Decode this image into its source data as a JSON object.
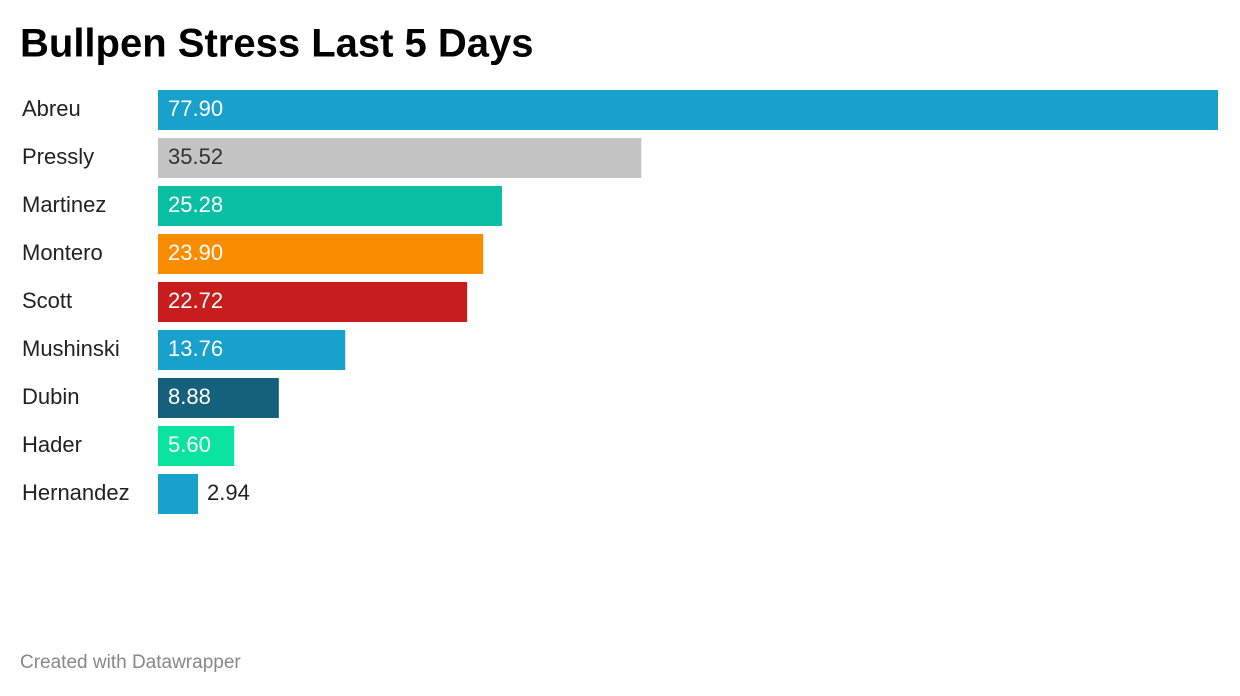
{
  "chart_data": {
    "type": "bar",
    "orientation": "horizontal",
    "title": "Bullpen Stress Last 5 Days",
    "categories": [
      "Abreu",
      "Pressly",
      "Martinez",
      "Montero",
      "Scott",
      "Mushinski",
      "Dubin",
      "Hader",
      "Hernandez"
    ],
    "values": [
      77.9,
      35.52,
      25.28,
      23.9,
      22.72,
      13.76,
      8.88,
      5.6,
      2.94
    ],
    "value_labels": [
      "77.90",
      "35.52",
      "25.28",
      "23.90",
      "22.72",
      "13.76",
      "8.88",
      "5.60",
      "2.94"
    ],
    "colors": [
      "#18a1cd",
      "#c4c4c4",
      "#09bfa3",
      "#fa8c00",
      "#c71e1d",
      "#18a1cd",
      "#15607a",
      "#0be3a1",
      "#18a1cd"
    ],
    "footer": "Created with Datawrapper"
  }
}
